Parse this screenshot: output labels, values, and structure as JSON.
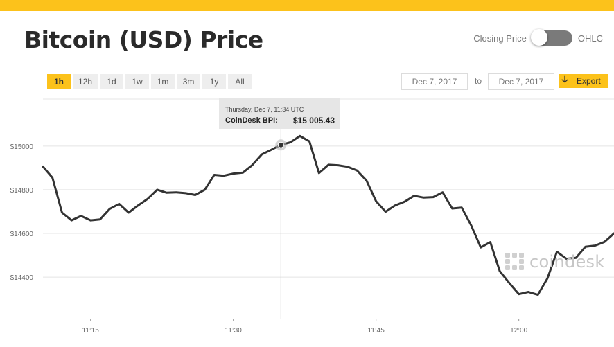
{
  "header": {
    "title": "Bitcoin (USD) Price",
    "toggle_left_label": "Closing Price",
    "toggle_right_label": "OHLC",
    "brand_color": "#fcc21b"
  },
  "controls": {
    "ranges": [
      "1h",
      "12h",
      "1d",
      "1w",
      "1m",
      "3m",
      "1y",
      "All"
    ],
    "active_range": "1h",
    "date_from": "Dec 7, 2017",
    "to_label": "to",
    "date_to": "Dec 7, 2017",
    "export_label": "Export",
    "export_icon": "download-arrow-icon"
  },
  "tooltip": {
    "date": "Thursday, Dec 7, 11:34 UTC",
    "label": "CoinDesk BPI:",
    "value": "$15 005.43"
  },
  "watermark": {
    "text": "coindesk",
    "icon": "coindesk-logo-icon"
  },
  "chart_data": {
    "type": "line",
    "title": "",
    "xlabel": "",
    "ylabel": "",
    "x_ticks": [
      "11:15",
      "11:30",
      "11:45",
      "12:00"
    ],
    "y_ticks": [
      "$15000",
      "$14800",
      "$14600",
      "$14400"
    ],
    "y_tick_values": [
      15000,
      14800,
      14600,
      14400
    ],
    "ylim": [
      14210,
      15215
    ],
    "grid": "horizontal",
    "line_color": "#333333",
    "highlight_index": 25,
    "series": [
      {
        "values": [
          14906,
          14855,
          14695,
          14660,
          14680,
          14660,
          14664,
          14712,
          14735,
          14695,
          14728,
          14758,
          14800,
          14786,
          14788,
          14784,
          14776,
          14800,
          14868,
          14864,
          14874,
          14878,
          14913,
          14962,
          14983,
          15005,
          15017,
          15046,
          15021,
          14876,
          14914,
          14912,
          14905,
          14888,
          14842,
          14747,
          14699,
          14728,
          14745,
          14772,
          14764,
          14766,
          14788,
          14714,
          14718,
          14636,
          14536,
          14560,
          14427,
          14373,
          14322,
          14332,
          14319,
          14394,
          14516,
          14484,
          14488,
          14539,
          14544,
          14561,
          14600
        ]
      }
    ]
  }
}
